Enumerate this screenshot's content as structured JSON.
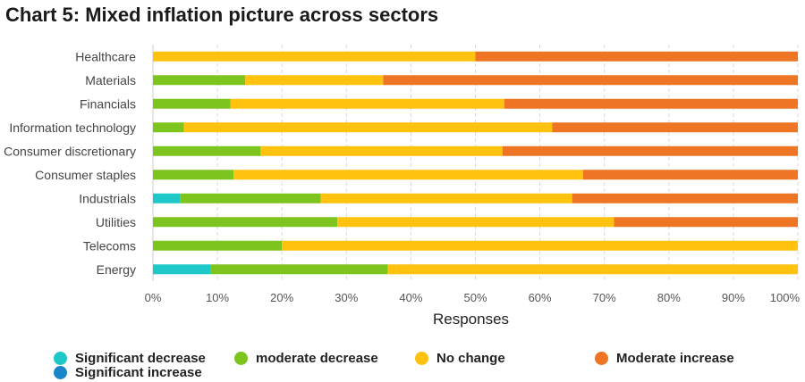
{
  "chart_data": {
    "type": "bar",
    "orientation": "horizontal",
    "stacked": true,
    "title": "Chart 5: Mixed inflation picture across sectors",
    "xlabel": "Responses",
    "ylabel": "",
    "xlim": [
      0,
      100
    ],
    "xticks": [
      "0%",
      "10%",
      "20%",
      "30%",
      "40%",
      "50%",
      "60%",
      "70%",
      "80%",
      "90%",
      "100%"
    ],
    "grid": "vertical",
    "categories": [
      "Healthcare",
      "Materials",
      "Financials",
      "Information technology",
      "Consumer discretionary",
      "Consumer staples",
      "Industrials",
      "Utilities",
      "Telecoms",
      "Energy"
    ],
    "series": [
      {
        "name": "Significant decrease",
        "color": "#1ec8c8",
        "values": [
          0,
          0,
          0,
          0,
          0,
          0,
          4.2,
          0,
          0,
          9
        ]
      },
      {
        "name": "moderate decrease",
        "color": "#7dc41f",
        "values": [
          0,
          14.3,
          12,
          4.8,
          16.7,
          12.5,
          21.8,
          28.6,
          20,
          27.4
        ]
      },
      {
        "name": "No change",
        "color": "#ffc20e",
        "values": [
          50,
          21.4,
          42.5,
          57.1,
          37.5,
          54.2,
          39,
          42.9,
          80,
          63.6
        ]
      },
      {
        "name": "Moderate increase",
        "color": "#ee7523",
        "values": [
          50,
          64.3,
          45.5,
          38.1,
          45.8,
          33.3,
          35,
          28.5,
          0,
          0
        ]
      },
      {
        "name": "Significant increase",
        "color": "#1a86c8",
        "values": [
          0,
          0,
          0,
          0,
          0,
          0,
          0,
          0,
          0,
          0
        ]
      }
    ]
  }
}
